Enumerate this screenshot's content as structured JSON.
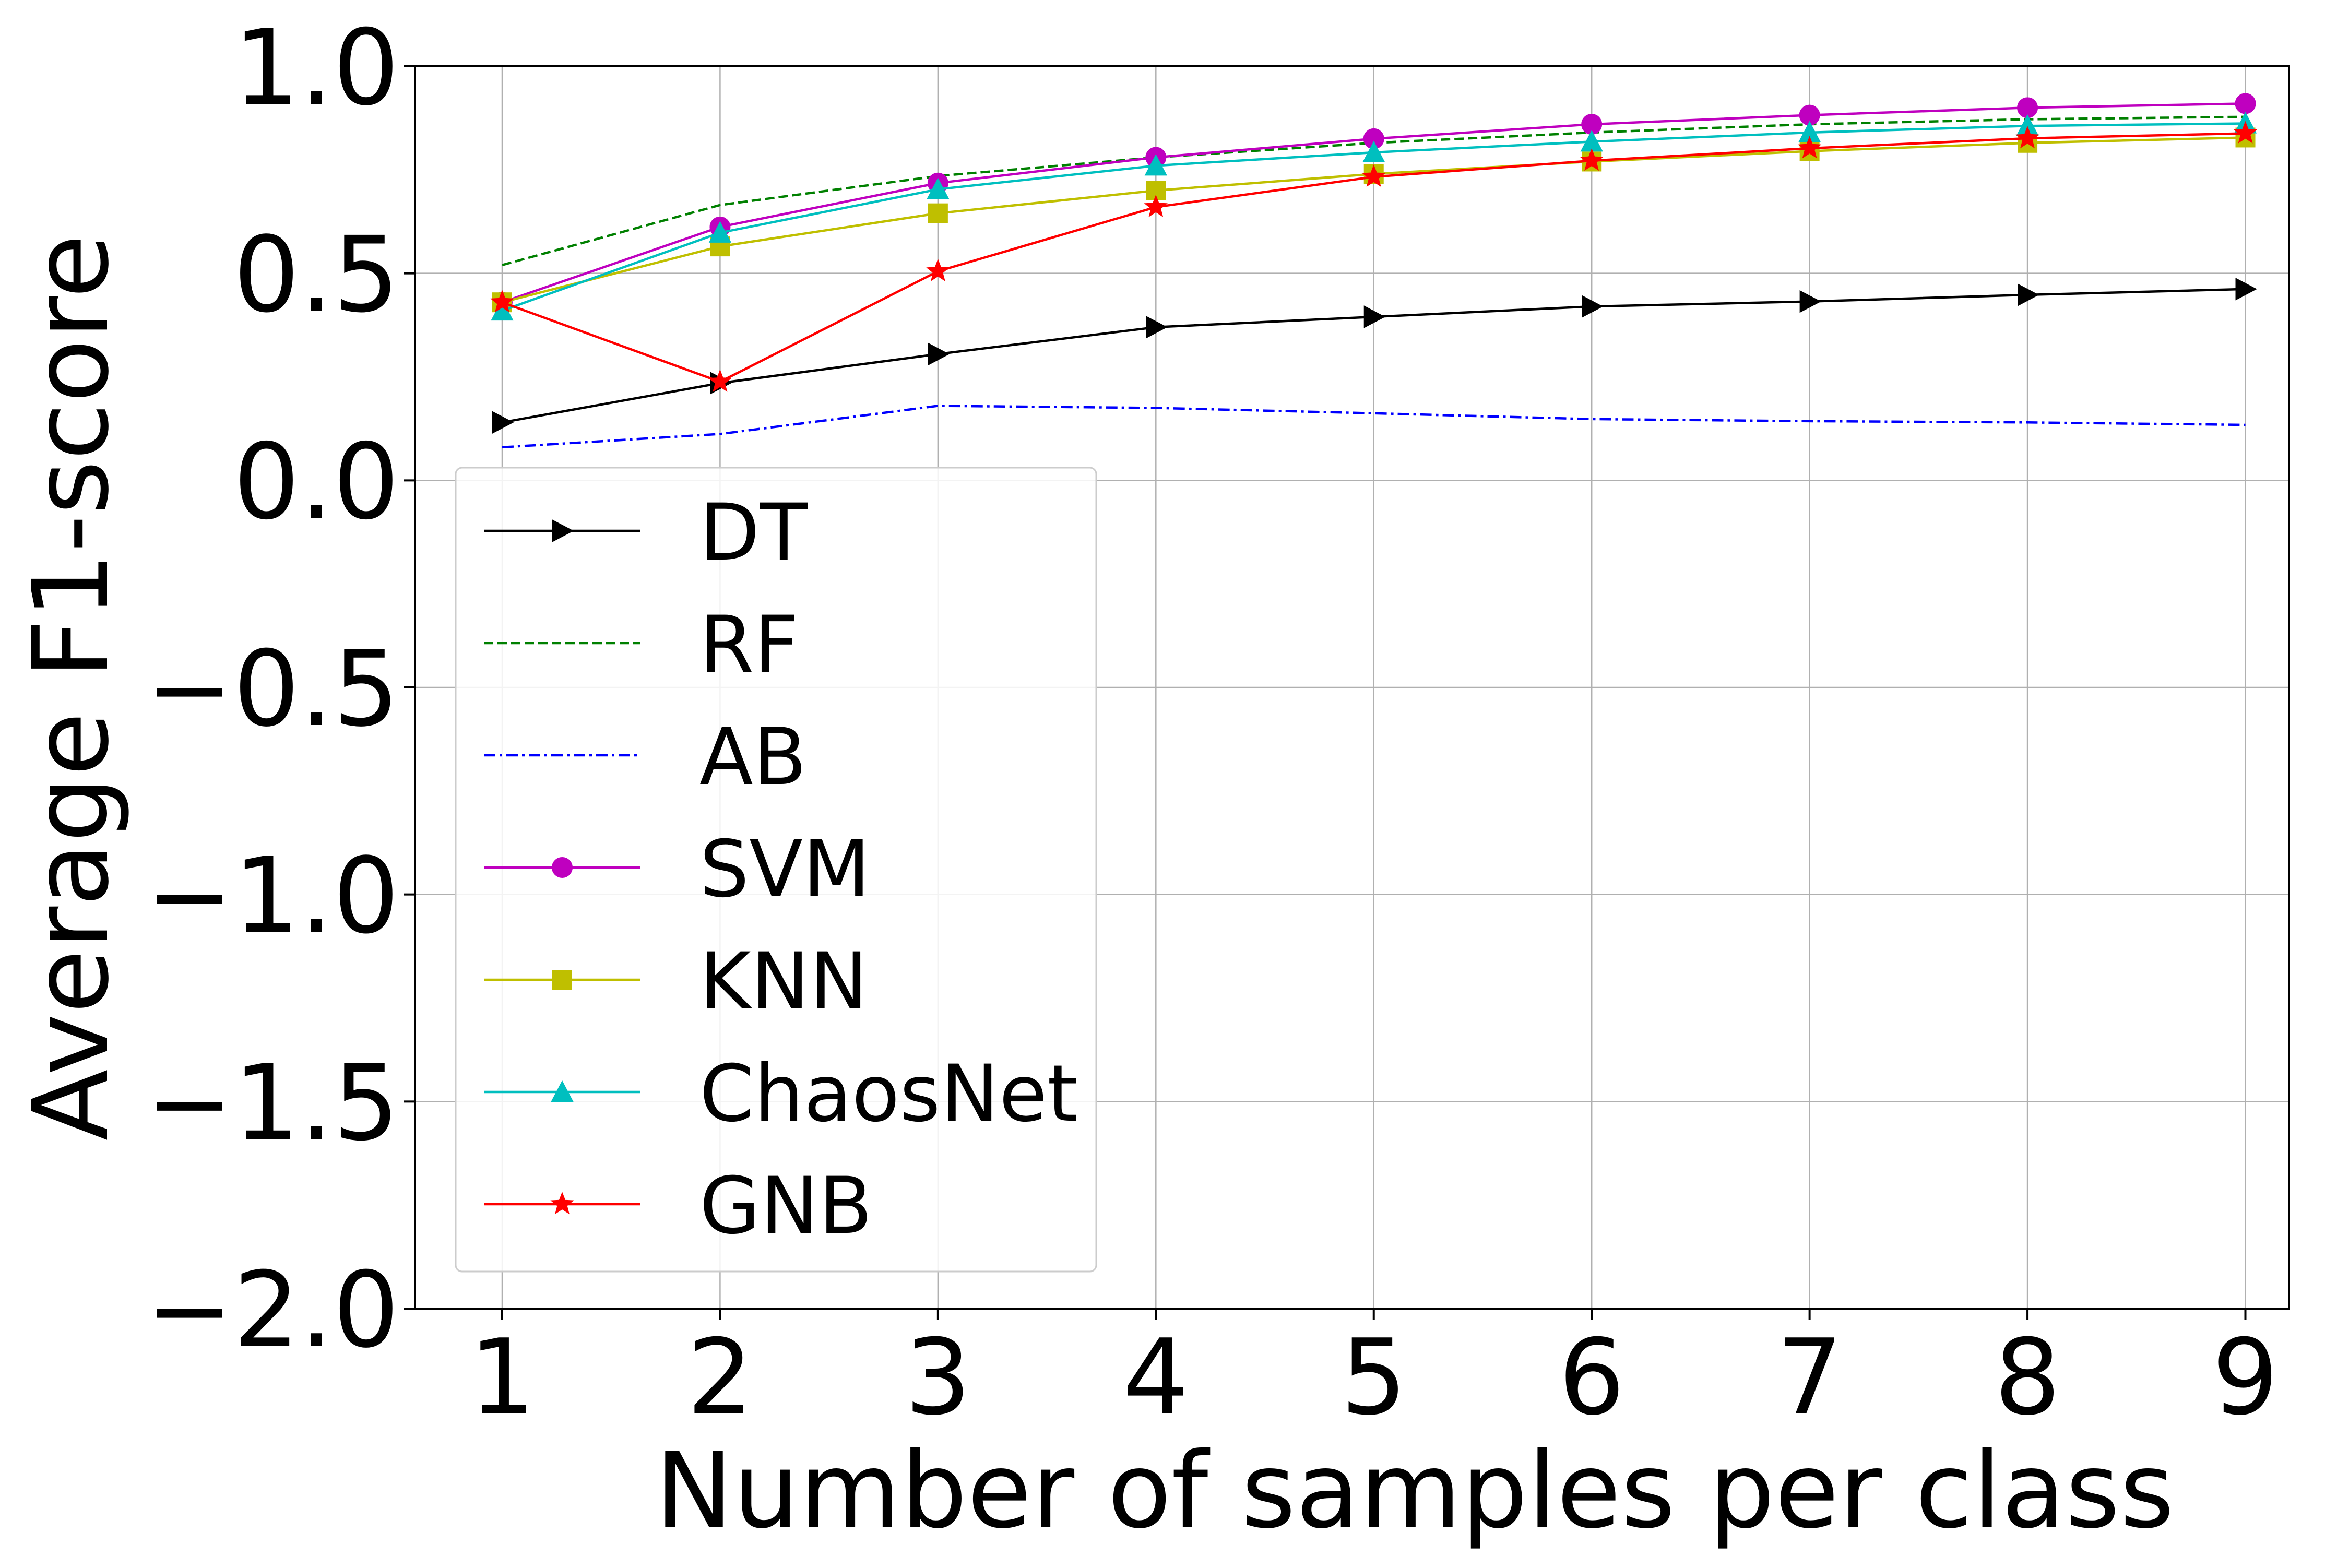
{
  "chart_data": {
    "type": "line",
    "title": "",
    "xlabel": "Number of samples per class",
    "ylabel": "Average F1-score",
    "x": [
      1,
      2,
      3,
      4,
      5,
      6,
      7,
      8,
      9
    ],
    "xlim": [
      0.6,
      9.2
    ],
    "ylim": [
      -2.0,
      1.0
    ],
    "xticks": [
      1,
      2,
      3,
      4,
      5,
      6,
      7,
      8,
      9
    ],
    "xtick_labels": [
      "1",
      "2",
      "3",
      "4",
      "5",
      "6",
      "7",
      "8",
      "9"
    ],
    "yticks": [
      -2.0,
      -1.5,
      -1.0,
      -0.5,
      0.0,
      0.5,
      1.0
    ],
    "ytick_labels": [
      "−2.0",
      "−1.5",
      "−1.0",
      "−0.5",
      "0.0",
      "0.5",
      "1.0"
    ],
    "grid": true,
    "legend_position": "lower-left",
    "series": [
      {
        "name": "DT",
        "color": "#000000",
        "dash": "solid",
        "marker": "triangle-right",
        "values": [
          0.14,
          0.235,
          0.305,
          0.37,
          0.395,
          0.42,
          0.432,
          0.448,
          0.462
        ]
      },
      {
        "name": "RF",
        "color": "#008000",
        "dash": "dashed",
        "marker": "none",
        "values": [
          0.52,
          0.665,
          0.735,
          0.78,
          0.815,
          0.84,
          0.86,
          0.872,
          0.878
        ]
      },
      {
        "name": "AB",
        "color": "#0000ff",
        "dash": "dashdot",
        "marker": "none",
        "values": [
          0.08,
          0.112,
          0.18,
          0.175,
          0.162,
          0.148,
          0.143,
          0.14,
          0.134
        ]
      },
      {
        "name": "SVM",
        "color": "#bf00bf",
        "dash": "solid",
        "marker": "circle",
        "values": [
          0.43,
          0.612,
          0.718,
          0.78,
          0.825,
          0.86,
          0.882,
          0.9,
          0.91
        ]
      },
      {
        "name": "KNN",
        "color": "#bfbf00",
        "dash": "solid",
        "marker": "square",
        "values": [
          0.43,
          0.565,
          0.645,
          0.7,
          0.74,
          0.77,
          0.795,
          0.815,
          0.828
        ]
      },
      {
        "name": "ChaosNet",
        "color": "#00bfbf",
        "dash": "solid",
        "marker": "triangle-up",
        "values": [
          0.41,
          0.598,
          0.703,
          0.76,
          0.792,
          0.818,
          0.84,
          0.856,
          0.862
        ]
      },
      {
        "name": "GNB",
        "color": "#ff0000",
        "dash": "solid",
        "marker": "star",
        "values": [
          0.43,
          0.238,
          0.505,
          0.66,
          0.733,
          0.772,
          0.802,
          0.826,
          0.838
        ]
      }
    ]
  }
}
